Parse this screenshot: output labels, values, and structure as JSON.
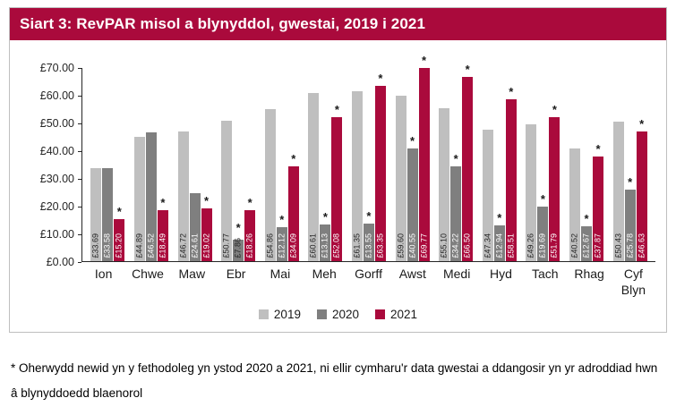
{
  "title": "Siart 3: RevPAR misol a blynyddol, gwestai, 2019 i 2021",
  "footnote": {
    "text": "* Oherwydd newid yn y fethodoleg yn ystod 2020 a 2021, ni ellir cymharu'r data gwestai a ddangosir yn yr adroddiad hwn â blynyddoedd blaenorol"
  },
  "colors": {
    "accent_red": "#AA0A3C",
    "series_2019": "#BFBFBF",
    "series_2020": "#7F7F7F",
    "axis": "#262626",
    "card_border": "#BFBFBF"
  },
  "chart_data": {
    "type": "bar",
    "title": "Siart 3: RevPAR misol a blynyddol, gwestai, 2019 i 2021",
    "currency": "£",
    "categories": [
      "Ion",
      "Chwe",
      "Maw",
      "Ebr",
      "Mai",
      "Meh",
      "Gorff",
      "Awst",
      "Medi",
      "Hyd",
      "Tach",
      "Rhag",
      "Cyf Blyn"
    ],
    "series": [
      {
        "name": "2019",
        "color": "#BFBFBF",
        "values": [
          33.69,
          44.89,
          46.72,
          50.77,
          54.86,
          60.61,
          61.35,
          59.6,
          55.1,
          47.34,
          49.26,
          40.52,
          50.43
        ],
        "asterisk": [
          false,
          false,
          false,
          false,
          false,
          false,
          false,
          false,
          false,
          false,
          false,
          false,
          false
        ]
      },
      {
        "name": "2020",
        "color": "#7F7F7F",
        "values": [
          33.58,
          46.52,
          24.61,
          7.86,
          12.12,
          13.13,
          13.55,
          40.55,
          34.22,
          12.94,
          19.69,
          12.67,
          25.78
        ],
        "asterisk": [
          false,
          false,
          false,
          true,
          true,
          true,
          true,
          true,
          true,
          true,
          true,
          true,
          true
        ]
      },
      {
        "name": "2021",
        "color": "#AA0A3C",
        "values": [
          15.2,
          18.49,
          19.02,
          18.26,
          34.09,
          52.08,
          63.35,
          69.77,
          66.5,
          58.51,
          51.79,
          37.87,
          46.63
        ],
        "asterisk": [
          true,
          true,
          true,
          true,
          true,
          true,
          true,
          true,
          true,
          true,
          true,
          true,
          true
        ]
      }
    ],
    "ylim": [
      0,
      70
    ],
    "y_ticks": [
      "£0.00",
      "£10.00",
      "£20.00",
      "£30.00",
      "£40.00",
      "£50.00",
      "£60.00",
      "£70.00"
    ],
    "grid": false,
    "legend_position": "bottom",
    "data_labels": "inside-base-rotated"
  }
}
